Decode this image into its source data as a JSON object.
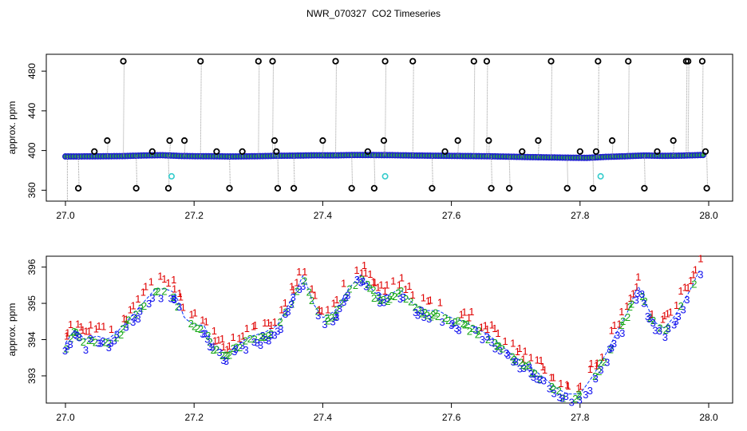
{
  "title": "NWR_070327  CO2 Timeseries",
  "colors": {
    "raw_line": "#999999",
    "mean_point": "#1f1fd0",
    "mean_point_fill": "#2ea84a",
    "outlier": "#000000",
    "flag": "#33cccc",
    "series1": "#e00000",
    "series2": "#18a818",
    "series3": "#1010ee",
    "mean_line": "#0030ff"
  },
  "chart_data": [
    {
      "type": "scatter",
      "xlabel": "",
      "ylabel": "approx. ppm",
      "xlim": [
        27.0,
        28.0
      ],
      "ylim": [
        349,
        497
      ],
      "xticks": [
        "27.0",
        "27.2",
        "27.4",
        "27.6",
        "27.8",
        "28.0"
      ],
      "yticks": [
        "360",
        "400",
        "440",
        "480"
      ],
      "series": [
        {
          "name": "",
          "x": [
            27.0,
            27.03,
            27.06,
            27.09,
            27.12,
            27.15,
            27.18,
            27.2,
            27.23,
            27.26,
            27.29,
            27.31,
            27.33,
            27.36,
            27.39,
            27.42,
            27.45,
            27.48,
            27.51,
            27.54,
            27.57,
            27.6,
            27.63,
            27.66,
            27.69,
            27.72,
            27.75,
            27.78,
            27.81,
            27.84,
            27.87,
            27.9,
            27.93,
            27.96,
            27.99
          ],
          "y": [
            394.0,
            394.1,
            394.2,
            394.4,
            395.0,
            395.3,
            394.5,
            394.3,
            394.2,
            394.0,
            394.2,
            394.4,
            394.7,
            394.9,
            395.2,
            395.1,
            395.5,
            395.4,
            395.3,
            395.0,
            394.8,
            394.6,
            394.4,
            394.2,
            393.8,
            393.4,
            393.1,
            392.8,
            392.6,
            393.6,
            394.2,
            395.0,
            394.6,
            394.9,
            395.5
          ]
        }
      ],
      "outliers": {
        "x": [
          27.02,
          27.045,
          27.065,
          27.09,
          27.11,
          27.135,
          27.16,
          27.162,
          27.185,
          27.21,
          27.235,
          27.255,
          27.275,
          27.3,
          27.322,
          27.325,
          27.328,
          27.33,
          27.355,
          27.4,
          27.42,
          27.445,
          27.47,
          27.48,
          27.495,
          27.497,
          27.54,
          27.57,
          27.59,
          27.61,
          27.635,
          27.655,
          27.658,
          27.662,
          27.69,
          27.71,
          27.735,
          27.755,
          27.78,
          27.8,
          27.82,
          27.825,
          27.828,
          27.85,
          27.875,
          27.9,
          27.92,
          27.945,
          27.965,
          27.968,
          27.99,
          27.995,
          27.997
        ],
        "y": [
          362,
          399,
          410,
          490,
          362,
          399,
          362,
          410,
          410,
          490,
          399,
          362,
          399,
          490,
          490,
          410,
          399,
          362,
          362,
          410,
          490,
          362,
          399,
          362,
          410,
          490,
          490,
          362,
          399,
          410,
          490,
          490,
          410,
          362,
          362,
          399,
          410,
          490,
          362,
          399,
          362,
          399,
          490,
          410,
          490,
          362,
          399,
          410,
          490,
          490,
          490,
          399,
          362
        ]
      },
      "flagged": {
        "x": [
          27.165,
          27.497,
          27.832
        ],
        "y": [
          374,
          374,
          374
        ]
      }
    },
    {
      "type": "scatter",
      "xlabel": "",
      "ylabel": "approx. ppm",
      "xlim": [
        27.0,
        28.0
      ],
      "ylim": [
        392.25,
        396.3
      ],
      "xticks": [
        "27.0",
        "27.2",
        "27.4",
        "27.6",
        "27.8",
        "28.0"
      ],
      "yticks": [
        "393",
        "394",
        "395",
        "396"
      ],
      "anchors": {
        "x": [
          27.0,
          27.015,
          27.03,
          27.05,
          27.065,
          27.08,
          27.1,
          27.12,
          27.14,
          27.155,
          27.17,
          27.185,
          27.2,
          27.215,
          27.23,
          27.25,
          27.27,
          27.29,
          27.31,
          27.33,
          27.345,
          27.36,
          27.37,
          27.385,
          27.4,
          27.42,
          27.44,
          27.46,
          27.48,
          27.5,
          27.52,
          27.54,
          27.56,
          27.58,
          27.6,
          27.62,
          27.64,
          27.66,
          27.68,
          27.7,
          27.72,
          27.74,
          27.76,
          27.78,
          27.8,
          27.82,
          27.84,
          27.86,
          27.875,
          27.89,
          27.9,
          27.915,
          27.93,
          27.945,
          27.96,
          27.975,
          27.985
        ],
        "y": [
          393.9,
          394.3,
          394.0,
          394.1,
          394.0,
          394.2,
          394.6,
          395.0,
          395.4,
          395.4,
          395.3,
          394.6,
          394.4,
          394.4,
          393.9,
          393.6,
          393.9,
          394.1,
          394.2,
          394.4,
          394.9,
          395.4,
          395.8,
          395.0,
          394.6,
          394.8,
          395.4,
          395.8,
          395.3,
          395.2,
          395.4,
          395.0,
          394.8,
          394.8,
          394.6,
          394.5,
          394.3,
          394.1,
          393.8,
          393.5,
          393.3,
          393.0,
          392.7,
          392.5,
          392.5,
          393.0,
          393.6,
          394.3,
          394.8,
          395.5,
          395.1,
          394.5,
          394.3,
          394.6,
          395.0,
          395.5,
          395.9
        ]
      },
      "labels": [
        "1",
        "2",
        "3"
      ]
    }
  ]
}
